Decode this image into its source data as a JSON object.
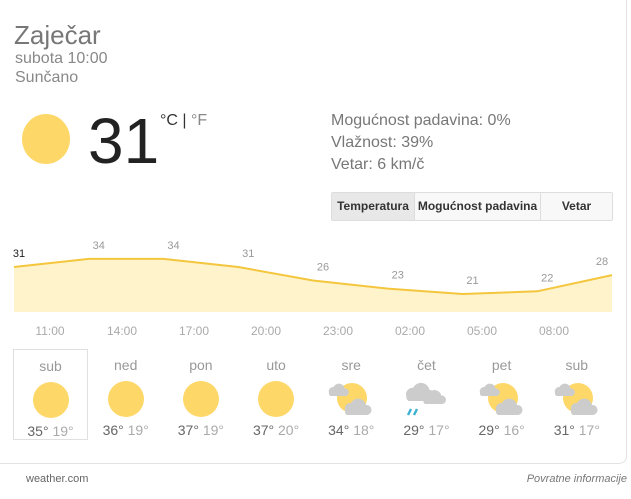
{
  "location": "Zaječar",
  "datetime": "subota 10:00",
  "condition": "Sunčano",
  "current": {
    "temperature": "31",
    "unit_c": "°C",
    "separator": " | ",
    "unit_f": "°F",
    "icon": "sun-icon"
  },
  "stats": {
    "precipitation": "Mogućnost padavina: 0%",
    "humidity": "Vlažnost: 39%",
    "wind": "Vetar: 6 km/č"
  },
  "tabs": [
    {
      "label": "Temperatura",
      "active": true
    },
    {
      "label": "Mogućnost padavina",
      "active": false
    },
    {
      "label": "Vetar",
      "active": false
    }
  ],
  "colors": {
    "sun": "#fdd868",
    "line": "#f4c63d",
    "fill": "#fff3cc",
    "cloud": "#cccccc",
    "rain": "#3fb3d2"
  },
  "chart_data": {
    "type": "area",
    "x": [
      "11:00",
      "14:00",
      "17:00",
      "20:00",
      "23:00",
      "02:00",
      "05:00",
      "08:00",
      "11:00"
    ],
    "values": [
      31,
      34,
      34,
      31,
      26,
      23,
      21,
      22,
      28
    ],
    "labels": [
      "31",
      "34",
      "34",
      "31",
      "26",
      "23",
      "21",
      "22",
      "28"
    ],
    "tick_labels": [
      "11:00",
      "14:00",
      "17:00",
      "20:00",
      "23:00",
      "02:00",
      "05:00",
      "08:00"
    ]
  },
  "daily": [
    {
      "day": "sub",
      "icon": "sun",
      "hi": "35°",
      "lo": "19°",
      "selected": true
    },
    {
      "day": "ned",
      "icon": "sun",
      "hi": "36°",
      "lo": "19°"
    },
    {
      "day": "pon",
      "icon": "sun",
      "hi": "37°",
      "lo": "19°"
    },
    {
      "day": "uto",
      "icon": "sun",
      "hi": "37°",
      "lo": "20°"
    },
    {
      "day": "sre",
      "icon": "partly-cloudy",
      "hi": "34°",
      "lo": "18°"
    },
    {
      "day": "čet",
      "icon": "rain",
      "hi": "29°",
      "lo": "17°"
    },
    {
      "day": "pet",
      "icon": "partly-cloudy",
      "hi": "29°",
      "lo": "16°"
    },
    {
      "day": "sub",
      "icon": "partly-cloudy",
      "hi": "31°",
      "lo": "17°"
    }
  ],
  "footer": {
    "source": "weather.com",
    "feedback": "Povratne informacije"
  }
}
